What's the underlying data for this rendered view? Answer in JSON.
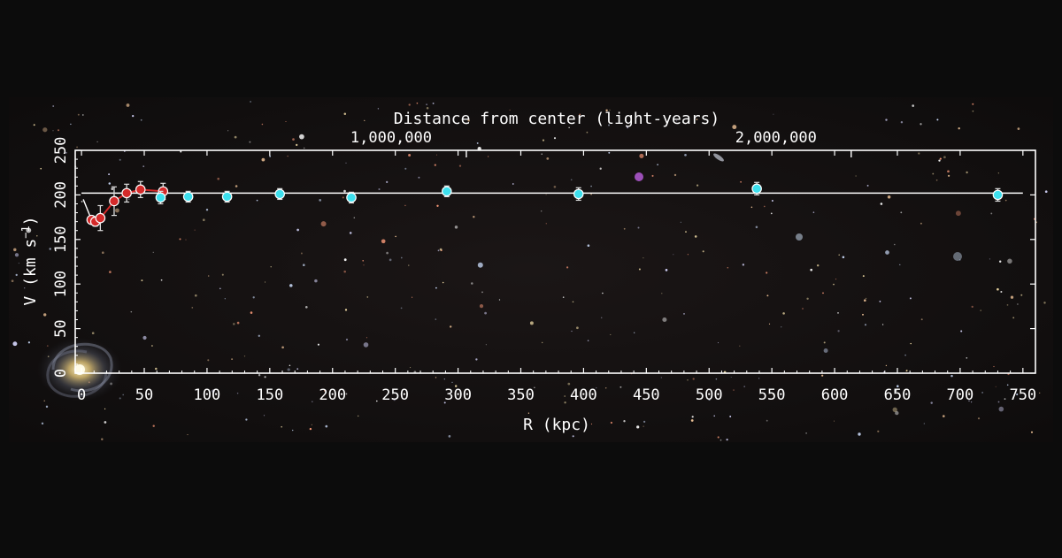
{
  "chart_data": {
    "type": "scatter",
    "xlabel": "R (kpc)",
    "ylabel_main": "V (km s",
    "ylabel_exp": "−1",
    "ylabel_close": ")",
    "top_axis_label": "Distance from center (light-years)",
    "top_ticks": [
      {
        "label": "1,000,000",
        "r_kpc": 306.6
      },
      {
        "label": "2,000,000",
        "r_kpc": 613.2
      }
    ],
    "xlim": [
      -5,
      760
    ],
    "ylim": [
      0,
      250
    ],
    "x_ticks": [
      0,
      50,
      100,
      150,
      200,
      250,
      300,
      350,
      400,
      450,
      500,
      550,
      600,
      650,
      700,
      750
    ],
    "y_ticks": [
      0,
      50,
      100,
      150,
      200,
      250
    ],
    "reference_line": {
      "v": 202,
      "r_start": 0,
      "r_end": 750,
      "color": "#ffffff"
    },
    "series": [
      {
        "color": "#d42a2a",
        "style": "line+markers",
        "points": [
          {
            "r": 8,
            "v": 172,
            "err": 4
          },
          {
            "r": 11,
            "v": 170,
            "err": 5
          },
          {
            "r": 15,
            "v": 174,
            "err": 14
          },
          {
            "r": 26,
            "v": 193,
            "err": 16
          },
          {
            "r": 36,
            "v": 202,
            "err": 10
          },
          {
            "r": 47,
            "v": 206,
            "err": 9
          },
          {
            "r": 65,
            "v": 204,
            "err": 9
          }
        ]
      },
      {
        "color": "#3ee0ee",
        "style": "markers",
        "points": [
          {
            "r": 63,
            "v": 197,
            "err": 7
          },
          {
            "r": 85,
            "v": 198,
            "err": 6
          },
          {
            "r": 116,
            "v": 198,
            "err": 6
          },
          {
            "r": 158,
            "v": 201,
            "err": 6
          },
          {
            "r": 215,
            "v": 197,
            "err": 6
          },
          {
            "r": 291,
            "v": 204,
            "err": 6
          },
          {
            "r": 396,
            "v": 201,
            "err": 7
          },
          {
            "r": 538,
            "v": 207,
            "err": 7
          },
          {
            "r": 730,
            "v": 200,
            "err": 7
          }
        ]
      }
    ]
  }
}
